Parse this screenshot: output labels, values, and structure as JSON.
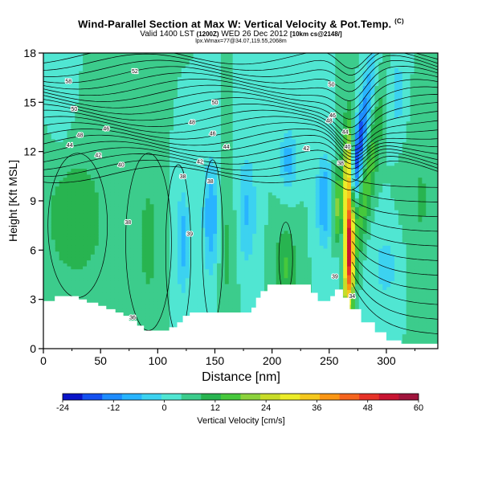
{
  "chart_data": {
    "type": "heatmap",
    "title": "Wind-Parallel Section at Max W: Vertical Velocity & Pot.Temp.",
    "title_mark": "(C)",
    "subtitle_main": "Valid 1400 LST",
    "subtitle_utc": "(1200Z)",
    "subtitle_date": "WED 26 Dec 2012",
    "subtitle_grid": "[10km cs@2148/]",
    "subtitle2": "lpx.Wmax=77@34.07,119.55,2068m",
    "xlabel": "Distance [nm]",
    "ylabel": "Height [Kft MSL]",
    "xlim": [
      0,
      345
    ],
    "ylim": [
      0,
      18
    ],
    "xticks": [
      0,
      50,
      100,
      150,
      200,
      250,
      300
    ],
    "yticks": [
      0,
      3,
      6,
      9,
      12,
      15,
      18
    ],
    "colorbar": {
      "label": "Vertical Velocity [cm/s]",
      "ticks": [
        -24,
        -12,
        0,
        12,
        24,
        36,
        48,
        60
      ],
      "min": -24,
      "max": 60,
      "colors": [
        "#0a14c8",
        "#1450f0",
        "#1e8cff",
        "#28b4ff",
        "#3cd2f0",
        "#50e6d2",
        "#3ccc8c",
        "#28b450",
        "#46c83c",
        "#8cd23c",
        "#c8dc28",
        "#ecec28",
        "#f5c81e",
        "#fa9614",
        "#f5641e",
        "#e63228",
        "#c81432",
        "#a0143c"
      ]
    },
    "isentrope_labels": [
      {
        "x": 22,
        "z": 16.3,
        "text": "58"
      },
      {
        "x": 80,
        "z": 16.9,
        "text": "52"
      },
      {
        "x": 27,
        "z": 14.6,
        "text": "50"
      },
      {
        "x": 150,
        "z": 15.0,
        "text": "50"
      },
      {
        "x": 252,
        "z": 16.1,
        "text": "50"
      },
      {
        "x": 55,
        "z": 13.4,
        "text": "46"
      },
      {
        "x": 130,
        "z": 13.8,
        "text": "48"
      },
      {
        "x": 148,
        "z": 13.1,
        "text": "46"
      },
      {
        "x": 250,
        "z": 13.9,
        "text": "48"
      },
      {
        "x": 253,
        "z": 14.2,
        "text": "46"
      },
      {
        "x": 32,
        "z": 13.0,
        "text": "48"
      },
      {
        "x": 23,
        "z": 12.4,
        "text": "44"
      },
      {
        "x": 48,
        "z": 11.8,
        "text": "42"
      },
      {
        "x": 68,
        "z": 11.2,
        "text": "40"
      },
      {
        "x": 160,
        "z": 12.3,
        "text": "44"
      },
      {
        "x": 230,
        "z": 12.2,
        "text": "42"
      },
      {
        "x": 137,
        "z": 11.4,
        "text": "42"
      },
      {
        "x": 264,
        "z": 13.2,
        "text": "44"
      },
      {
        "x": 266,
        "z": 12.3,
        "text": "40"
      },
      {
        "x": 122,
        "z": 10.5,
        "text": "38"
      },
      {
        "x": 146,
        "z": 10.2,
        "text": "38"
      },
      {
        "x": 260,
        "z": 11.3,
        "text": "38"
      },
      {
        "x": 74,
        "z": 7.7,
        "text": "38"
      },
      {
        "x": 128,
        "z": 7.0,
        "text": "39"
      },
      {
        "x": 255,
        "z": 4.4,
        "text": "39"
      },
      {
        "x": 270,
        "z": 3.2,
        "text": "34"
      },
      {
        "x": 78,
        "z": 1.9,
        "text": "36"
      }
    ],
    "terrain": [
      [
        0,
        2.9
      ],
      [
        10,
        2.9
      ],
      [
        10,
        3.2
      ],
      [
        31,
        3.2
      ],
      [
        31,
        3.0
      ],
      [
        38,
        3.0
      ],
      [
        38,
        2.8
      ],
      [
        48,
        2.8
      ],
      [
        48,
        2.6
      ],
      [
        55,
        2.6
      ],
      [
        55,
        2.4
      ],
      [
        63,
        2.4
      ],
      [
        63,
        2.2
      ],
      [
        70,
        2.2
      ],
      [
        70,
        2.0
      ],
      [
        75,
        2.0
      ],
      [
        75,
        1.7
      ],
      [
        82,
        1.7
      ],
      [
        82,
        1.4
      ],
      [
        88,
        1.4
      ],
      [
        88,
        1.1
      ],
      [
        110,
        1.1
      ],
      [
        110,
        1.3
      ],
      [
        117,
        1.3
      ],
      [
        117,
        1.6
      ],
      [
        122,
        1.6
      ],
      [
        122,
        2.0
      ],
      [
        128,
        2.0
      ],
      [
        128,
        2.2
      ],
      [
        182,
        2.2
      ],
      [
        182,
        2.5
      ],
      [
        186,
        2.5
      ],
      [
        186,
        3.1
      ],
      [
        190,
        3.1
      ],
      [
        190,
        3.5
      ],
      [
        196,
        3.5
      ],
      [
        196,
        3.9
      ],
      [
        234,
        3.9
      ],
      [
        234,
        3.4
      ],
      [
        240,
        3.4
      ],
      [
        240,
        2.9
      ],
      [
        251,
        2.9
      ],
      [
        251,
        3.2
      ],
      [
        255,
        3.2
      ],
      [
        255,
        3.6
      ],
      [
        262,
        3.6
      ],
      [
        262,
        3.1
      ],
      [
        268,
        3.1
      ],
      [
        268,
        2.4
      ],
      [
        278,
        2.4
      ],
      [
        278,
        1.6
      ],
      [
        290,
        1.6
      ],
      [
        290,
        1.0
      ],
      [
        300,
        1.0
      ],
      [
        300,
        0.5
      ],
      [
        313,
        0.5
      ],
      [
        313,
        0.3
      ],
      [
        345,
        0.3
      ]
    ]
  }
}
